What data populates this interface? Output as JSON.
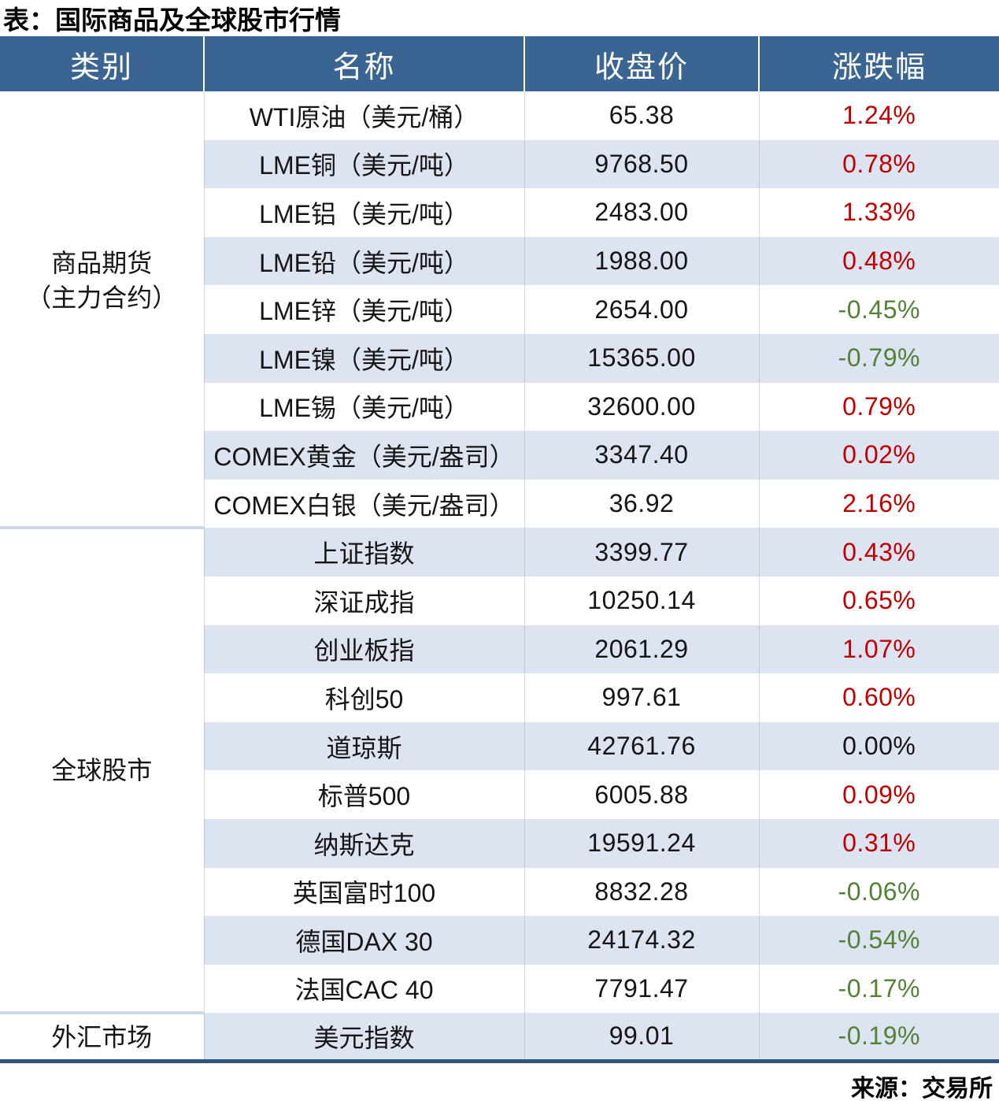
{
  "page": {
    "title": "表：国际商品及全球股市行情",
    "source": "来源：交易所"
  },
  "chart_data": {
    "type": "table",
    "title": "表：国际商品及全球股市行情",
    "columns": [
      "类别",
      "名称",
      "收盘价",
      "涨跌幅"
    ],
    "sections": [
      {
        "category": "商品期货（主力合约）",
        "category_lines": [
          "商品期货",
          "（主力合约）"
        ],
        "rows": [
          {
            "name": "WTI原油（美元/桶）",
            "close": "65.38",
            "change": "1.24%",
            "trend": "up"
          },
          {
            "name": "LME铜（美元/吨）",
            "close": "9768.50",
            "change": "0.78%",
            "trend": "up"
          },
          {
            "name": "LME铝（美元/吨）",
            "close": "2483.00",
            "change": "1.33%",
            "trend": "up"
          },
          {
            "name": "LME铅（美元/吨）",
            "close": "1988.00",
            "change": "0.48%",
            "trend": "up"
          },
          {
            "name": "LME锌（美元/吨）",
            "close": "2654.00",
            "change": "-0.45%",
            "trend": "down"
          },
          {
            "name": "LME镍（美元/吨）",
            "close": "15365.00",
            "change": "-0.79%",
            "trend": "down"
          },
          {
            "name": "LME锡（美元/吨）",
            "close": "32600.00",
            "change": "0.79%",
            "trend": "up"
          },
          {
            "name": "COMEX黄金（美元/盎司）",
            "close": "3347.40",
            "change": "0.02%",
            "trend": "up"
          },
          {
            "name": "COMEX白银（美元/盎司）",
            "close": "36.92",
            "change": "2.16%",
            "trend": "up"
          }
        ]
      },
      {
        "category": "全球股市",
        "category_lines": [
          "全球股市"
        ],
        "rows": [
          {
            "name": "上证指数",
            "close": "3399.77",
            "change": "0.43%",
            "trend": "up"
          },
          {
            "name": "深证成指",
            "close": "10250.14",
            "change": "0.65%",
            "trend": "up"
          },
          {
            "name": "创业板指",
            "close": "2061.29",
            "change": "1.07%",
            "trend": "up"
          },
          {
            "name": "科创50",
            "close": "997.61",
            "change": "0.60%",
            "trend": "up"
          },
          {
            "name": "道琼斯",
            "close": "42761.76",
            "change": "0.00%",
            "trend": "flat"
          },
          {
            "name": "标普500",
            "close": "6005.88",
            "change": "0.09%",
            "trend": "up"
          },
          {
            "name": "纳斯达克",
            "close": "19591.24",
            "change": "0.31%",
            "trend": "up"
          },
          {
            "name": "英国富时100",
            "close": "8832.28",
            "change": "-0.06%",
            "trend": "down"
          },
          {
            "name": "德国DAX 30",
            "close": "24174.32",
            "change": "-0.54%",
            "trend": "down"
          },
          {
            "name": "法国CAC 40",
            "close": "7791.47",
            "change": "-0.17%",
            "trend": "down"
          }
        ]
      },
      {
        "category": "外汇市场",
        "category_lines": [
          "外汇市场"
        ],
        "rows": [
          {
            "name": "美元指数",
            "close": "99.01",
            "change": "-0.19%",
            "trend": "down"
          }
        ]
      }
    ],
    "colors": {
      "up": "#c00000",
      "down": "#538135",
      "flat": "#151515",
      "header_bg": "#3a6492",
      "header_text": "#ffffff",
      "band_row": "#dbe4f0",
      "section_divider": "#ccd7e5",
      "table_bottom_border": "#2f5580"
    },
    "source": "来源：交易所",
    "legend_position": "none",
    "grid": "banded-rows"
  }
}
